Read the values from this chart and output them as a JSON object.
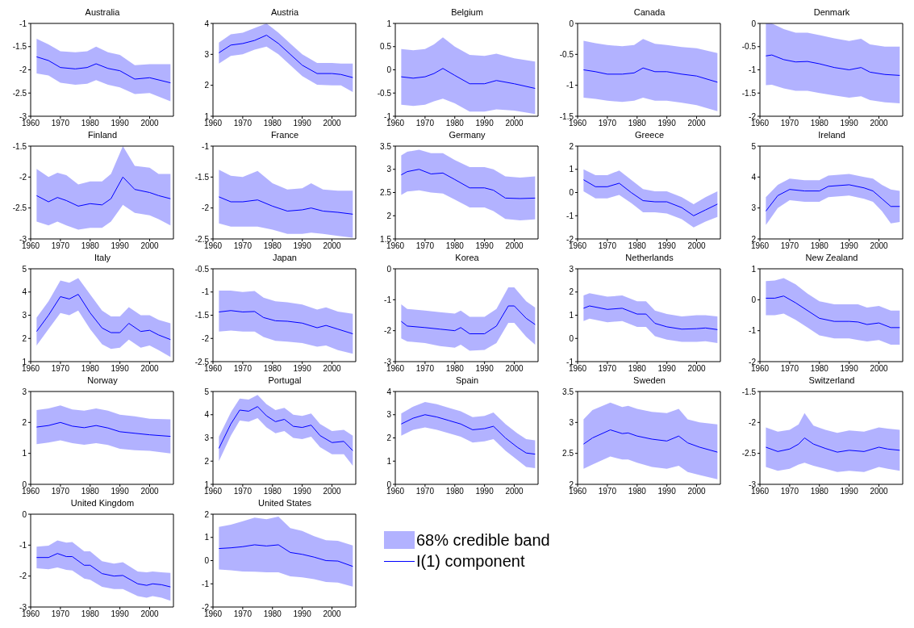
{
  "chart_data": [
    {
      "type": "line",
      "title": "Australia",
      "x": [
        1962,
        1966,
        1970,
        1975,
        1979,
        1982,
        1986,
        1990,
        1995,
        2000,
        2007
      ],
      "xlim": [
        1960,
        2008
      ],
      "xticks": [
        1960,
        1970,
        1980,
        1990,
        2000
      ],
      "ylim": [
        -3,
        -1
      ],
      "yticks": [
        -3,
        -2.5,
        -2,
        -1.5,
        -1
      ],
      "series": [
        {
          "color": "#0000ff",
          "values": [
            -1.72,
            -1.8,
            -1.95,
            -1.98,
            -1.95,
            -1.87,
            -1.97,
            -2.02,
            -2.2,
            -2.17,
            -2.28
          ],
          "upper": [
            -1.33,
            -1.45,
            -1.6,
            -1.62,
            -1.6,
            -1.5,
            -1.62,
            -1.68,
            -1.9,
            -1.88,
            -1.88
          ],
          "lower": [
            -2.08,
            -2.12,
            -2.28,
            -2.32,
            -2.3,
            -2.22,
            -2.32,
            -2.38,
            -2.52,
            -2.5,
            -2.68
          ]
        }
      ]
    },
    {
      "type": "line",
      "title": "Austria",
      "x": [
        1962,
        1966,
        1970,
        1974,
        1978,
        1982,
        1986,
        1990,
        1995,
        2000,
        2003,
        2007
      ],
      "xlim": [
        1960,
        2008
      ],
      "xticks": [
        1960,
        1970,
        1980,
        1990,
        2000
      ],
      "ylim": [
        1,
        4
      ],
      "yticks": [
        1,
        2,
        3,
        4
      ],
      "series": [
        {
          "color": "#0000ff",
          "values": [
            3.05,
            3.3,
            3.35,
            3.45,
            3.62,
            3.35,
            3.0,
            2.65,
            2.38,
            2.38,
            2.35,
            2.25
          ],
          "upper": [
            3.38,
            3.65,
            3.7,
            3.85,
            4.0,
            3.7,
            3.35,
            3.0,
            2.72,
            2.72,
            2.7,
            2.7
          ],
          "lower": [
            2.7,
            2.95,
            3.0,
            3.15,
            3.25,
            3.0,
            2.65,
            2.3,
            2.02,
            2.0,
            2.0,
            1.78
          ]
        }
      ]
    },
    {
      "type": "line",
      "title": "Belgium",
      "x": [
        1962,
        1966,
        1970,
        1973,
        1976,
        1980,
        1985,
        1990,
        1994,
        2000,
        2007
      ],
      "xlim": [
        1960,
        2008
      ],
      "xticks": [
        1960,
        1970,
        1980,
        1990,
        2000
      ],
      "ylim": [
        -1,
        1
      ],
      "yticks": [
        -1,
        -0.5,
        0,
        0.5,
        1
      ],
      "series": [
        {
          "color": "#0000ff",
          "values": [
            -0.15,
            -0.18,
            -0.15,
            -0.08,
            0.03,
            -0.12,
            -0.3,
            -0.3,
            -0.23,
            -0.3,
            -0.4
          ],
          "upper": [
            0.45,
            0.42,
            0.45,
            0.55,
            0.7,
            0.5,
            0.32,
            0.3,
            0.35,
            0.25,
            0.18
          ],
          "lower": [
            -0.75,
            -0.78,
            -0.75,
            -0.68,
            -0.62,
            -0.72,
            -0.9,
            -0.9,
            -0.85,
            -0.88,
            -0.95
          ]
        }
      ]
    },
    {
      "type": "line",
      "title": "Canada",
      "x": [
        1962,
        1966,
        1970,
        1975,
        1979,
        1982,
        1986,
        1990,
        1995,
        2000,
        2007
      ],
      "xlim": [
        1960,
        2008
      ],
      "xticks": [
        1960,
        1970,
        1980,
        1990,
        2000
      ],
      "ylim": [
        -1.5,
        0
      ],
      "yticks": [
        -1.5,
        -1,
        -0.5,
        0
      ],
      "series": [
        {
          "color": "#0000ff",
          "values": [
            -0.75,
            -0.78,
            -0.82,
            -0.82,
            -0.8,
            -0.72,
            -0.78,
            -0.78,
            -0.82,
            -0.85,
            -0.95
          ],
          "upper": [
            -0.28,
            -0.32,
            -0.35,
            -0.37,
            -0.35,
            -0.25,
            -0.33,
            -0.35,
            -0.38,
            -0.4,
            -0.48
          ],
          "lower": [
            -1.2,
            -1.22,
            -1.25,
            -1.27,
            -1.25,
            -1.2,
            -1.25,
            -1.25,
            -1.28,
            -1.32,
            -1.42
          ]
        }
      ]
    },
    {
      "type": "line",
      "title": "Denmark",
      "x": [
        1962,
        1964,
        1968,
        1972,
        1976,
        1980,
        1985,
        1990,
        1994,
        1997,
        2002,
        2007
      ],
      "xlim": [
        1960,
        2008
      ],
      "xticks": [
        1960,
        1970,
        1980,
        1990,
        2000
      ],
      "ylim": [
        -2,
        0
      ],
      "yticks": [
        -2,
        -1.5,
        -1,
        -0.5,
        0
      ],
      "series": [
        {
          "color": "#0000ff",
          "values": [
            -0.7,
            -0.68,
            -0.78,
            -0.83,
            -0.82,
            -0.87,
            -0.95,
            -1.0,
            -0.95,
            -1.05,
            -1.1,
            -1.12
          ],
          "upper": [
            0,
            0,
            -0.12,
            -0.2,
            -0.2,
            -0.25,
            -0.32,
            -0.38,
            -0.33,
            -0.45,
            -0.5,
            -0.5
          ],
          "lower": [
            -1.33,
            -1.32,
            -1.4,
            -1.45,
            -1.45,
            -1.5,
            -1.55,
            -1.6,
            -1.57,
            -1.65,
            -1.7,
            -1.72
          ]
        }
      ]
    },
    {
      "type": "line",
      "title": "Finland",
      "x": [
        1962,
        1966,
        1969,
        1972,
        1976,
        1980,
        1984,
        1987,
        1991,
        1995,
        2000,
        2003,
        2007
      ],
      "xlim": [
        1960,
        2008
      ],
      "xticks": [
        1960,
        1970,
        1980,
        1990,
        2000
      ],
      "ylim": [
        -3,
        -1.5
      ],
      "yticks": [
        -3,
        -2.5,
        -2,
        -1.5
      ],
      "series": [
        {
          "color": "#0000ff",
          "values": [
            -2.3,
            -2.4,
            -2.33,
            -2.38,
            -2.47,
            -2.43,
            -2.45,
            -2.35,
            -2.0,
            -2.2,
            -2.25,
            -2.3,
            -2.35
          ],
          "upper": [
            -1.87,
            -2.0,
            -1.93,
            -1.97,
            -2.12,
            -2.07,
            -2.07,
            -1.95,
            -1.5,
            -1.82,
            -1.85,
            -1.95,
            -1.95
          ],
          "lower": [
            -2.72,
            -2.78,
            -2.72,
            -2.78,
            -2.85,
            -2.82,
            -2.82,
            -2.72,
            -2.45,
            -2.58,
            -2.62,
            -2.68,
            -2.78
          ]
        }
      ]
    },
    {
      "type": "line",
      "title": "France",
      "x": [
        1962,
        1966,
        1970,
        1975,
        1980,
        1985,
        1990,
        1993,
        1997,
        2002,
        2007
      ],
      "xlim": [
        1960,
        2008
      ],
      "xticks": [
        1960,
        1970,
        1980,
        1990,
        2000
      ],
      "ylim": [
        -2.5,
        -1
      ],
      "yticks": [
        -2.5,
        -2,
        -1.5,
        -1
      ],
      "series": [
        {
          "color": "#0000ff",
          "values": [
            -1.82,
            -1.9,
            -1.9,
            -1.87,
            -1.97,
            -2.05,
            -2.03,
            -2.0,
            -2.05,
            -2.07,
            -2.1
          ],
          "upper": [
            -1.38,
            -1.48,
            -1.5,
            -1.4,
            -1.6,
            -1.7,
            -1.68,
            -1.6,
            -1.7,
            -1.72,
            -1.72
          ],
          "lower": [
            -2.25,
            -2.3,
            -2.3,
            -2.3,
            -2.35,
            -2.42,
            -2.42,
            -2.4,
            -2.42,
            -2.45,
            -2.48
          ]
        }
      ]
    },
    {
      "type": "line",
      "title": "Germany",
      "x": [
        1962,
        1964,
        1968,
        1972,
        1976,
        1980,
        1985,
        1990,
        1993,
        1997,
        2002,
        2007
      ],
      "xlim": [
        1960,
        2008
      ],
      "xticks": [
        1960,
        1970,
        1980,
        1990,
        2000
      ],
      "ylim": [
        1.5,
        3.5
      ],
      "yticks": [
        1.5,
        2,
        2.5,
        3,
        3.5
      ],
      "series": [
        {
          "color": "#0000ff",
          "values": [
            2.88,
            2.95,
            3.0,
            2.9,
            2.92,
            2.78,
            2.6,
            2.6,
            2.55,
            2.38,
            2.37,
            2.38
          ],
          "upper": [
            3.3,
            3.38,
            3.42,
            3.35,
            3.35,
            3.2,
            3.05,
            3.05,
            3.0,
            2.85,
            2.82,
            2.85
          ],
          "lower": [
            2.45,
            2.52,
            2.55,
            2.5,
            2.48,
            2.35,
            2.18,
            2.18,
            2.1,
            1.93,
            1.9,
            1.92
          ]
        }
      ]
    },
    {
      "type": "line",
      "title": "Greece",
      "x": [
        1962,
        1966,
        1970,
        1974,
        1978,
        1982,
        1986,
        1990,
        1995,
        1999,
        2003,
        2007
      ],
      "xlim": [
        1960,
        2008
      ],
      "xticks": [
        1960,
        1970,
        1980,
        1990,
        2000
      ],
      "ylim": [
        -2,
        2
      ],
      "yticks": [
        -2,
        -1,
        0,
        1,
        2
      ],
      "series": [
        {
          "color": "#0000ff",
          "values": [
            0.55,
            0.25,
            0.25,
            0.4,
            0.0,
            -0.35,
            -0.4,
            -0.4,
            -0.65,
            -1.0,
            -0.75,
            -0.5
          ],
          "upper": [
            1.0,
            0.75,
            0.75,
            0.95,
            0.55,
            0.15,
            0.05,
            0.05,
            -0.2,
            -0.5,
            -0.2,
            0.05
          ],
          "lower": [
            0.05,
            -0.25,
            -0.25,
            -0.1,
            -0.45,
            -0.85,
            -0.85,
            -0.9,
            -1.15,
            -1.5,
            -1.25,
            -1.05
          ]
        }
      ]
    },
    {
      "type": "line",
      "title": "Ireland",
      "x": [
        1962,
        1966,
        1970,
        1975,
        1980,
        1983,
        1990,
        1995,
        1998,
        2001,
        2004,
        2007
      ],
      "xlim": [
        1960,
        2008
      ],
      "xticks": [
        1960,
        1970,
        1980,
        1990,
        2000
      ],
      "ylim": [
        2,
        5
      ],
      "yticks": [
        2,
        3,
        4,
        5
      ],
      "series": [
        {
          "color": "#0000ff",
          "values": [
            2.9,
            3.4,
            3.6,
            3.55,
            3.55,
            3.7,
            3.75,
            3.65,
            3.55,
            3.3,
            3.05,
            3.05
          ],
          "upper": [
            3.35,
            3.75,
            3.95,
            3.9,
            3.9,
            4.05,
            4.1,
            4.0,
            3.95,
            3.75,
            3.6,
            3.55
          ],
          "lower": [
            2.45,
            3.0,
            3.25,
            3.2,
            3.2,
            3.35,
            3.4,
            3.3,
            3.2,
            2.9,
            2.5,
            2.55
          ]
        }
      ]
    },
    {
      "type": "line",
      "title": "Italy",
      "x": [
        1962,
        1966,
        1970,
        1973,
        1976,
        1980,
        1984,
        1987,
        1990,
        1993,
        1997,
        2000,
        2003,
        2007
      ],
      "xlim": [
        1960,
        2008
      ],
      "xticks": [
        1960,
        1970,
        1980,
        1990,
        2000
      ],
      "ylim": [
        1,
        5
      ],
      "yticks": [
        1,
        2,
        3,
        4,
        5
      ],
      "series": [
        {
          "color": "#0000ff",
          "values": [
            2.3,
            3.0,
            3.8,
            3.7,
            3.9,
            3.1,
            2.45,
            2.25,
            2.25,
            2.65,
            2.3,
            2.35,
            2.15,
            1.95
          ],
          "upper": [
            2.9,
            3.6,
            4.5,
            4.4,
            4.6,
            3.9,
            3.2,
            2.95,
            2.95,
            3.35,
            3.0,
            3.0,
            2.8,
            2.65
          ],
          "lower": [
            1.7,
            2.4,
            3.1,
            3.0,
            3.2,
            2.4,
            1.75,
            1.55,
            1.6,
            1.95,
            1.6,
            1.7,
            1.5,
            1.2
          ]
        }
      ]
    },
    {
      "type": "line",
      "title": "Japan",
      "x": [
        1962,
        1966,
        1970,
        1974,
        1977,
        1981,
        1985,
        1990,
        1995,
        1998,
        2002,
        2007
      ],
      "xlim": [
        1960,
        2008
      ],
      "xticks": [
        1960,
        1970,
        1980,
        1990,
        2000
      ],
      "ylim": [
        -2.5,
        -0.5
      ],
      "yticks": [
        -2.5,
        -2,
        -1.5,
        -1,
        -0.5
      ],
      "series": [
        {
          "color": "#0000ff",
          "values": [
            -1.43,
            -1.4,
            -1.43,
            -1.42,
            -1.55,
            -1.62,
            -1.63,
            -1.67,
            -1.77,
            -1.72,
            -1.8,
            -1.9
          ],
          "upper": [
            -0.97,
            -0.97,
            -1.0,
            -0.98,
            -1.12,
            -1.2,
            -1.22,
            -1.27,
            -1.38,
            -1.33,
            -1.42,
            -1.47
          ],
          "lower": [
            -1.85,
            -1.83,
            -1.85,
            -1.85,
            -1.97,
            -2.05,
            -2.07,
            -2.1,
            -2.18,
            -2.15,
            -2.25,
            -2.33
          ]
        }
      ]
    },
    {
      "type": "line",
      "title": "Korea",
      "x": [
        1962,
        1964,
        1970,
        1975,
        1980,
        1982,
        1985,
        1990,
        1994,
        1998,
        2000,
        2004,
        2007
      ],
      "xlim": [
        1960,
        2008
      ],
      "xticks": [
        1960,
        1970,
        1980,
        1990,
        2000
      ],
      "ylim": [
        -3,
        0
      ],
      "yticks": [
        -3,
        -2,
        -1,
        0
      ],
      "series": [
        {
          "color": "#0000ff",
          "values": [
            -1.7,
            -1.85,
            -1.9,
            -1.95,
            -2.0,
            -1.9,
            -2.1,
            -2.1,
            -1.85,
            -1.2,
            -1.2,
            -1.6,
            -1.8
          ],
          "upper": [
            -1.15,
            -1.3,
            -1.35,
            -1.4,
            -1.45,
            -1.35,
            -1.55,
            -1.55,
            -1.3,
            -0.6,
            -0.6,
            -1.05,
            -1.25
          ],
          "lower": [
            -2.25,
            -2.35,
            -2.4,
            -2.5,
            -2.55,
            -2.45,
            -2.65,
            -2.62,
            -2.4,
            -1.75,
            -1.75,
            -2.2,
            -2.45
          ]
        }
      ]
    },
    {
      "type": "line",
      "title": "Netherlands",
      "x": [
        1962,
        1964,
        1970,
        1975,
        1980,
        1983,
        1986,
        1990,
        1995,
        2000,
        2003,
        2007
      ],
      "xlim": [
        1960,
        2008
      ],
      "xticks": [
        1960,
        1970,
        1980,
        1990,
        2000
      ],
      "ylim": [
        -1,
        3
      ],
      "yticks": [
        -1,
        0,
        1,
        2,
        3
      ],
      "series": [
        {
          "color": "#0000ff",
          "values": [
            1.3,
            1.4,
            1.25,
            1.3,
            1.05,
            1.05,
            0.65,
            0.5,
            0.4,
            0.42,
            0.45,
            0.38
          ],
          "upper": [
            1.85,
            1.95,
            1.8,
            1.85,
            1.6,
            1.6,
            1.2,
            1.05,
            0.95,
            1.0,
            1.0,
            0.95
          ],
          "lower": [
            0.75,
            0.85,
            0.7,
            0.75,
            0.5,
            0.5,
            0.1,
            -0.05,
            -0.15,
            -0.15,
            -0.12,
            -0.2
          ]
        }
      ]
    },
    {
      "type": "line",
      "title": "New Zealand",
      "x": [
        1962,
        1965,
        1968,
        1972,
        1976,
        1980,
        1985,
        1990,
        1993,
        1996,
        2000,
        2004,
        2007
      ],
      "xlim": [
        1960,
        2008
      ],
      "xticks": [
        1960,
        1970,
        1980,
        1990,
        2000
      ],
      "ylim": [
        -2,
        1
      ],
      "yticks": [
        -2,
        -1,
        0,
        1
      ],
      "series": [
        {
          "color": "#0000ff",
          "values": [
            0.05,
            0.05,
            0.12,
            -0.1,
            -0.35,
            -0.6,
            -0.7,
            -0.7,
            -0.72,
            -0.8,
            -0.75,
            -0.9,
            -0.9
          ],
          "upper": [
            0.6,
            0.62,
            0.7,
            0.5,
            0.2,
            -0.05,
            -0.15,
            -0.15,
            -0.15,
            -0.25,
            -0.2,
            -0.35,
            -0.35
          ],
          "lower": [
            -0.5,
            -0.5,
            -0.45,
            -0.65,
            -0.9,
            -1.15,
            -1.25,
            -1.25,
            -1.3,
            -1.35,
            -1.3,
            -1.45,
            -1.45
          ]
        }
      ]
    },
    {
      "type": "line",
      "title": "Norway",
      "x": [
        1962,
        1966,
        1970,
        1974,
        1978,
        1982,
        1986,
        1990,
        1995,
        2000,
        2007
      ],
      "xlim": [
        1960,
        2008
      ],
      "xticks": [
        1960,
        1970,
        1980,
        1990,
        2000
      ],
      "ylim": [
        0,
        3
      ],
      "yticks": [
        0,
        1,
        2,
        3
      ],
      "series": [
        {
          "color": "#0000ff",
          "values": [
            1.85,
            1.9,
            2.0,
            1.88,
            1.83,
            1.9,
            1.82,
            1.7,
            1.65,
            1.6,
            1.55
          ],
          "upper": [
            2.4,
            2.45,
            2.55,
            2.42,
            2.38,
            2.45,
            2.38,
            2.25,
            2.2,
            2.12,
            2.1
          ],
          "lower": [
            1.3,
            1.35,
            1.42,
            1.33,
            1.28,
            1.33,
            1.27,
            1.15,
            1.1,
            1.08,
            1.0
          ]
        }
      ]
    },
    {
      "type": "line",
      "title": "Portugal",
      "x": [
        1962,
        1966,
        1969,
        1972,
        1975,
        1978,
        1981,
        1984,
        1987,
        1990,
        1993,
        1996,
        2000,
        2004,
        2007
      ],
      "xlim": [
        1960,
        2008
      ],
      "xticks": [
        1960,
        1970,
        1980,
        1990,
        2000
      ],
      "ylim": [
        1,
        5
      ],
      "yticks": [
        1,
        2,
        3,
        4,
        5
      ],
      "series": [
        {
          "color": "#0000ff",
          "values": [
            2.55,
            3.6,
            4.2,
            4.15,
            4.35,
            3.95,
            3.7,
            3.8,
            3.5,
            3.45,
            3.55,
            3.1,
            2.8,
            2.85,
            2.45
          ],
          "upper": [
            3.05,
            4.1,
            4.7,
            4.65,
            4.85,
            4.45,
            4.2,
            4.3,
            4.0,
            3.95,
            4.05,
            3.6,
            3.3,
            3.35,
            3.1
          ],
          "lower": [
            2.0,
            3.1,
            3.75,
            3.7,
            3.85,
            3.45,
            3.2,
            3.3,
            3.0,
            2.95,
            3.05,
            2.6,
            2.3,
            2.3,
            1.8
          ]
        }
      ]
    },
    {
      "type": "line",
      "title": "Spain",
      "x": [
        1962,
        1966,
        1970,
        1974,
        1978,
        1982,
        1986,
        1990,
        1993,
        1997,
        2001,
        2004,
        2007
      ],
      "xlim": [
        1960,
        2008
      ],
      "xticks": [
        1960,
        1970,
        1980,
        1990,
        2000
      ],
      "ylim": [
        0,
        4
      ],
      "yticks": [
        0,
        1,
        2,
        3,
        4
      ],
      "series": [
        {
          "color": "#0000ff",
          "values": [
            2.6,
            2.85,
            3.0,
            2.9,
            2.75,
            2.6,
            2.35,
            2.4,
            2.5,
            2.0,
            1.6,
            1.35,
            1.3
          ],
          "upper": [
            3.05,
            3.35,
            3.55,
            3.45,
            3.3,
            3.15,
            2.9,
            2.95,
            3.1,
            2.6,
            2.2,
            1.95,
            1.9
          ],
          "lower": [
            2.1,
            2.35,
            2.45,
            2.35,
            2.2,
            2.05,
            1.8,
            1.85,
            1.95,
            1.45,
            1.05,
            0.75,
            0.7
          ]
        }
      ]
    },
    {
      "type": "line",
      "title": "Sweden",
      "x": [
        1962,
        1965,
        1971,
        1975,
        1977,
        1980,
        1985,
        1990,
        1994,
        1997,
        2001,
        2007
      ],
      "xlim": [
        1960,
        2008
      ],
      "xticks": [
        1960,
        1970,
        1980,
        1990,
        2000
      ],
      "ylim": [
        2,
        3.5
      ],
      "yticks": [
        2,
        2.5,
        3,
        3.5
      ],
      "series": [
        {
          "color": "#0000ff",
          "values": [
            2.65,
            2.75,
            2.88,
            2.82,
            2.83,
            2.78,
            2.73,
            2.7,
            2.78,
            2.67,
            2.6,
            2.52
          ],
          "upper": [
            3.05,
            3.2,
            3.32,
            3.25,
            3.27,
            3.22,
            3.17,
            3.15,
            3.22,
            3.05,
            3.0,
            2.97
          ],
          "lower": [
            2.25,
            2.32,
            2.45,
            2.4,
            2.4,
            2.35,
            2.28,
            2.25,
            2.3,
            2.2,
            2.15,
            2.08
          ]
        }
      ]
    },
    {
      "type": "line",
      "title": "Switzerland",
      "x": [
        1962,
        1966,
        1970,
        1973,
        1975,
        1978,
        1982,
        1986,
        1990,
        1995,
        2000,
        2003,
        2007
      ],
      "xlim": [
        1960,
        2008
      ],
      "xticks": [
        1960,
        1970,
        1980,
        1990,
        2000
      ],
      "ylim": [
        -3,
        -1.5
      ],
      "yticks": [
        -3,
        -2.5,
        -2,
        -1.5
      ],
      "series": [
        {
          "color": "#0000ff",
          "values": [
            -2.4,
            -2.47,
            -2.43,
            -2.35,
            -2.25,
            -2.35,
            -2.42,
            -2.48,
            -2.45,
            -2.47,
            -2.4,
            -2.43,
            -2.45
          ],
          "upper": [
            -2.08,
            -2.15,
            -2.12,
            -2.03,
            -1.85,
            -2.05,
            -2.12,
            -2.17,
            -2.13,
            -2.15,
            -2.08,
            -2.1,
            -2.12
          ],
          "lower": [
            -2.72,
            -2.78,
            -2.75,
            -2.68,
            -2.65,
            -2.7,
            -2.75,
            -2.8,
            -2.78,
            -2.8,
            -2.72,
            -2.75,
            -2.78
          ]
        }
      ]
    },
    {
      "type": "line",
      "title": "United Kingdom",
      "x": [
        1962,
        1966,
        1969,
        1972,
        1974,
        1978,
        1980,
        1984,
        1988,
        1991,
        1996,
        1999,
        2001,
        2004,
        2007
      ],
      "xlim": [
        1960,
        2008
      ],
      "xticks": [
        1960,
        1970,
        1980,
        1990,
        2000
      ],
      "ylim": [
        -3,
        0
      ],
      "yticks": [
        -3,
        -2,
        -1,
        0
      ],
      "series": [
        {
          "color": "#0000ff",
          "values": [
            -1.4,
            -1.4,
            -1.27,
            -1.37,
            -1.37,
            -1.65,
            -1.65,
            -1.92,
            -2.0,
            -1.98,
            -2.25,
            -2.3,
            -2.25,
            -2.28,
            -2.35
          ],
          "upper": [
            -1.05,
            -1.02,
            -0.85,
            -0.92,
            -0.9,
            -1.2,
            -1.2,
            -1.52,
            -1.6,
            -1.55,
            -1.85,
            -1.88,
            -1.85,
            -1.88,
            -1.9
          ],
          "lower": [
            -1.75,
            -1.78,
            -1.72,
            -1.8,
            -1.82,
            -2.08,
            -2.12,
            -2.35,
            -2.42,
            -2.42,
            -2.65,
            -2.7,
            -2.65,
            -2.7,
            -2.8
          ]
        }
      ]
    },
    {
      "type": "line",
      "title": "United States",
      "x": [
        1962,
        1966,
        1970,
        1974,
        1978,
        1982,
        1986,
        1990,
        1994,
        1998,
        2002,
        2007
      ],
      "xlim": [
        1960,
        2008
      ],
      "xticks": [
        1960,
        1970,
        1980,
        1990,
        2000
      ],
      "ylim": [
        -2,
        2
      ],
      "yticks": [
        -2,
        -1,
        0,
        1,
        2
      ],
      "legend": "right",
      "annotations": [
        "68% credible band"
      ],
      "series": [
        {
          "name": "I(1) component",
          "color": "#0000ff",
          "values": [
            0.52,
            0.55,
            0.6,
            0.68,
            0.63,
            0.68,
            0.35,
            0.27,
            0.15,
            0.0,
            -0.02,
            -0.25
          ],
          "upper": [
            1.45,
            1.55,
            1.7,
            1.85,
            1.78,
            1.9,
            1.4,
            1.28,
            1.05,
            0.88,
            0.85,
            0.65
          ],
          "lower": [
            -0.38,
            -0.42,
            -0.47,
            -0.48,
            -0.5,
            -0.5,
            -0.68,
            -0.72,
            -0.8,
            -0.92,
            -0.95,
            -1.12
          ]
        }
      ]
    }
  ]
}
